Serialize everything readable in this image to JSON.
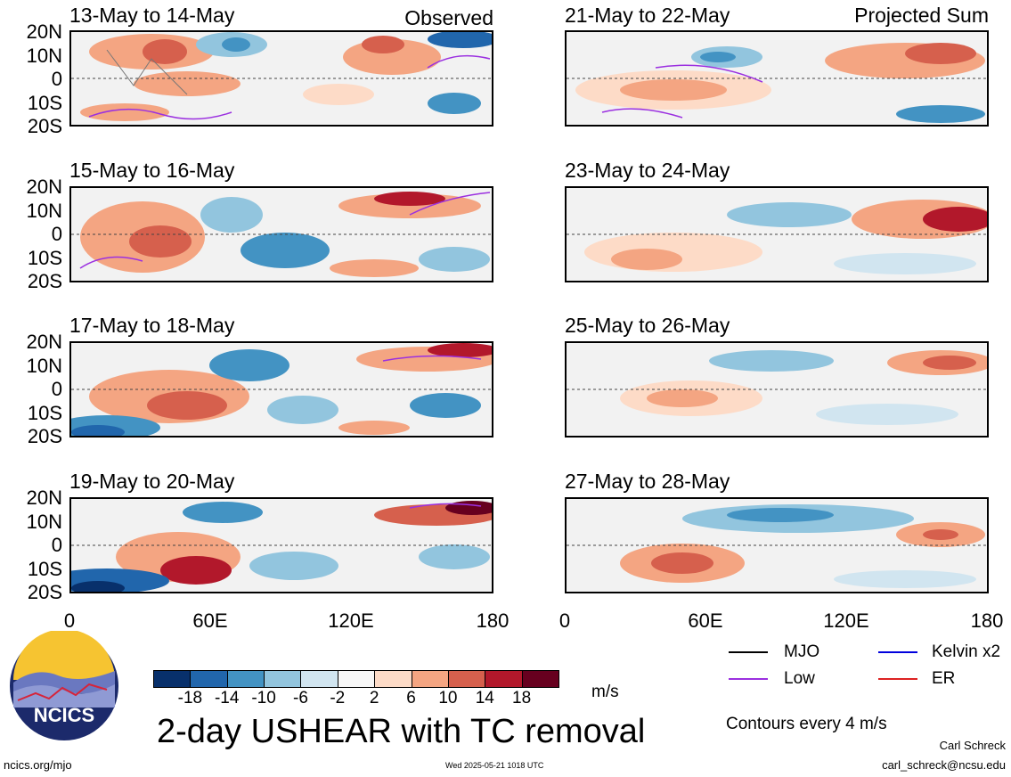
{
  "panels": [
    {
      "title": "13-May to 14-May",
      "label": "Observed"
    },
    {
      "title": "15-May to 16-May",
      "label": ""
    },
    {
      "title": "17-May to 18-May",
      "label": ""
    },
    {
      "title": "19-May to 20-May",
      "label": ""
    },
    {
      "title": "21-May to 22-May",
      "label": "Projected Sum"
    },
    {
      "title": "23-May to 24-May",
      "label": ""
    },
    {
      "title": "25-May to 26-May",
      "label": ""
    },
    {
      "title": "27-May to 28-May",
      "label": ""
    }
  ],
  "lat_ticks": [
    "20N",
    "10N",
    "0",
    "10S",
    "20S"
  ],
  "lon_ticks": [
    "0",
    "60E",
    "120E",
    "180"
  ],
  "colorbar": {
    "labels": [
      "-18",
      "-14",
      "-10",
      "-6",
      "-2",
      "2",
      "6",
      "10",
      "14",
      "18"
    ],
    "colors": [
      "#08306b",
      "#2166ac",
      "#4393c3",
      "#92c5de",
      "#d1e5f0",
      "#f7f7f7",
      "#fddbc7",
      "#f4a582",
      "#d6604d",
      "#b2182b",
      "#67001f"
    ],
    "units": "m/s"
  },
  "legend": [
    {
      "label": "MJO",
      "color": "#000000"
    },
    {
      "label": "Kelvin x2",
      "color": "#0000dd"
    },
    {
      "label": "Low",
      "color": "#9b30e0"
    },
    {
      "label": "ER",
      "color": "#dd2222"
    }
  ],
  "contour_note": "Contours every 4 m/s",
  "main_title": "2-day USHEAR with TC removal",
  "logo_text": "NCICS",
  "footer": {
    "left": "ncics.org/mjo",
    "center": "Wed 2025-05-21 1018 UTC",
    "author": "Carl Schreck",
    "email": "carl_schreck@ncsu.edu"
  }
}
